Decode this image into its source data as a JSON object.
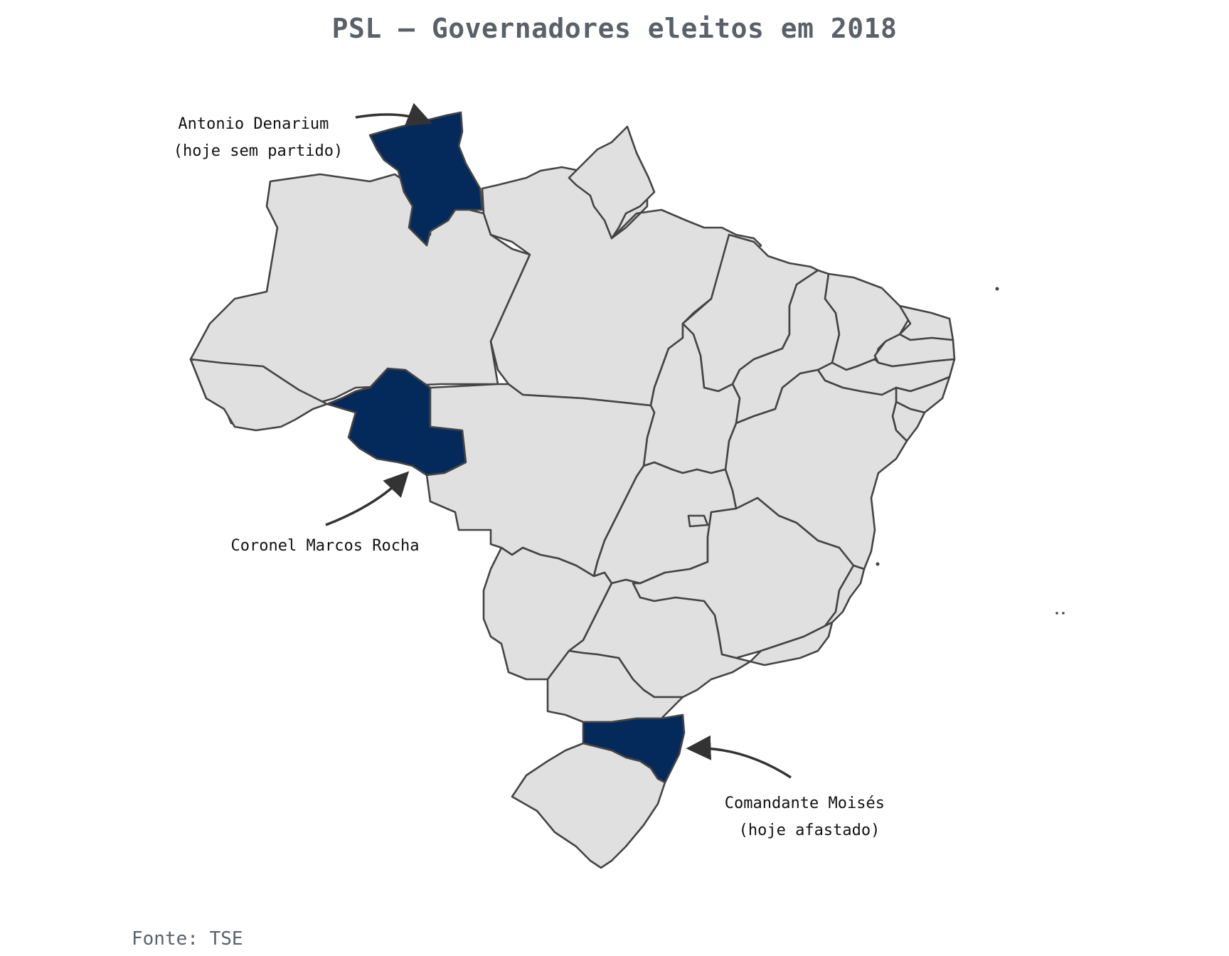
{
  "title": "PSL – Governadores eleitos em 2018",
  "source": "Fonte: TSE",
  "colors": {
    "highlight": "#042a5b",
    "base": "#e0e0e0",
    "border": "#444444"
  },
  "highlighted_states": [
    "RR",
    "RO",
    "SC"
  ],
  "annotations": [
    {
      "state": "RR",
      "lines": [
        "Antonio Denarium",
        "(hoje sem partido)"
      ]
    },
    {
      "state": "RO",
      "lines": [
        "Coronel Marcos Rocha"
      ]
    },
    {
      "state": "SC",
      "lines": [
        "Comandante Moisés",
        "(hoje afastado)"
      ]
    }
  ]
}
